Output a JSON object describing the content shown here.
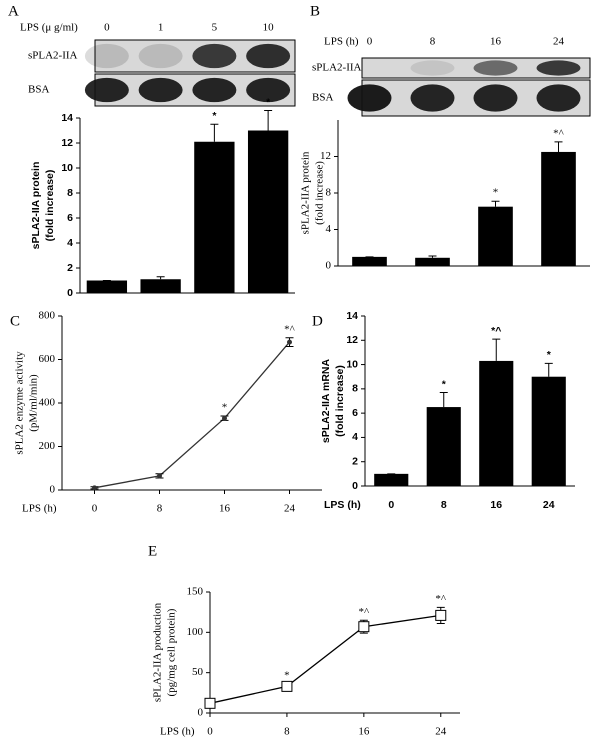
{
  "chart_data": [
    {
      "type": "bar",
      "panel": "A",
      "blot": {
        "label": "LPS (μ g/ml)",
        "rows": [
          "sPLA2-IIA",
          "BSA"
        ]
      },
      "categories": [
        "0",
        "1",
        "5",
        "10"
      ],
      "values": [
        1,
        1.1,
        12.1,
        13
      ],
      "errors": [
        0,
        0.2,
        1.4,
        1.6
      ],
      "annotations": [
        null,
        null,
        "*",
        "*"
      ],
      "ylabel": [
        "sPLA2-IIA protein",
        "(fold increase)"
      ],
      "ylim": [
        0,
        14
      ],
      "yticks": [
        0,
        2,
        4,
        6,
        8,
        10,
        12,
        14
      ],
      "color": "#000000"
    },
    {
      "type": "bar",
      "panel": "B",
      "blot": {
        "label": "LPS (h)",
        "rows": [
          "sPLA2-IIA",
          "BSA"
        ]
      },
      "categories": [
        "0",
        "8",
        "16",
        "24"
      ],
      "values": [
        1,
        0.9,
        6.5,
        12.5
      ],
      "errors": [
        0,
        0.2,
        0.6,
        1.1
      ],
      "annotations": [
        null,
        null,
        "*",
        "*^"
      ],
      "ylabel": [
        "sPLA2-IIA protein",
        "(fold increase)"
      ],
      "ylim": [
        0,
        16
      ],
      "yticks": [
        0,
        4,
        8,
        12
      ],
      "color": "#000000"
    },
    {
      "type": "line",
      "panel": "C",
      "x": [
        0,
        8,
        16,
        24
      ],
      "values": [
        10,
        65,
        330,
        680
      ],
      "errors": [
        5,
        10,
        10,
        20
      ],
      "annotations": [
        null,
        null,
        "*",
        "*^"
      ],
      "ylabel": [
        "sPLA2 enzyme activity",
        "(pM/ml/min)"
      ],
      "xlabel": "LPS (h)",
      "xlim": [
        -4,
        28
      ],
      "xticks": [
        0,
        8,
        16,
        24
      ],
      "ylim": [
        0,
        800
      ],
      "yticks": [
        0,
        200,
        400,
        600,
        800
      ],
      "marker": "circle",
      "color": "#333333"
    },
    {
      "type": "bar",
      "panel": "D",
      "categories": [
        "0",
        "8",
        "16",
        "24"
      ],
      "values": [
        1,
        6.5,
        10.3,
        9
      ],
      "errors": [
        0,
        1.2,
        1.8,
        1.1
      ],
      "annotations": [
        null,
        "*",
        "*^",
        "*"
      ],
      "ylabel": [
        "sPLA2-IIA mRNA",
        "(fold increase)"
      ],
      "xlabel": "LPS (h)",
      "ylim": [
        0,
        14
      ],
      "yticks": [
        0,
        2,
        4,
        6,
        8,
        10,
        12,
        14
      ],
      "color": "#000000"
    },
    {
      "type": "line",
      "panel": "E",
      "x": [
        0,
        8,
        16,
        24
      ],
      "values": [
        12,
        33,
        107,
        121
      ],
      "errors": [
        5,
        3,
        8,
        10
      ],
      "annotations": [
        null,
        "*",
        "*^",
        "*^"
      ],
      "ylabel": [
        "sPLA2-IIA production",
        "(pg/mg cell protein)"
      ],
      "xlabel": "LPS (h)",
      "xlim": [
        0,
        26
      ],
      "xticks": [
        0,
        8,
        16,
        24
      ],
      "ylim": [
        0,
        150
      ],
      "yticks": [
        0,
        50,
        100,
        150
      ],
      "marker": "square",
      "color": "#000000"
    }
  ]
}
